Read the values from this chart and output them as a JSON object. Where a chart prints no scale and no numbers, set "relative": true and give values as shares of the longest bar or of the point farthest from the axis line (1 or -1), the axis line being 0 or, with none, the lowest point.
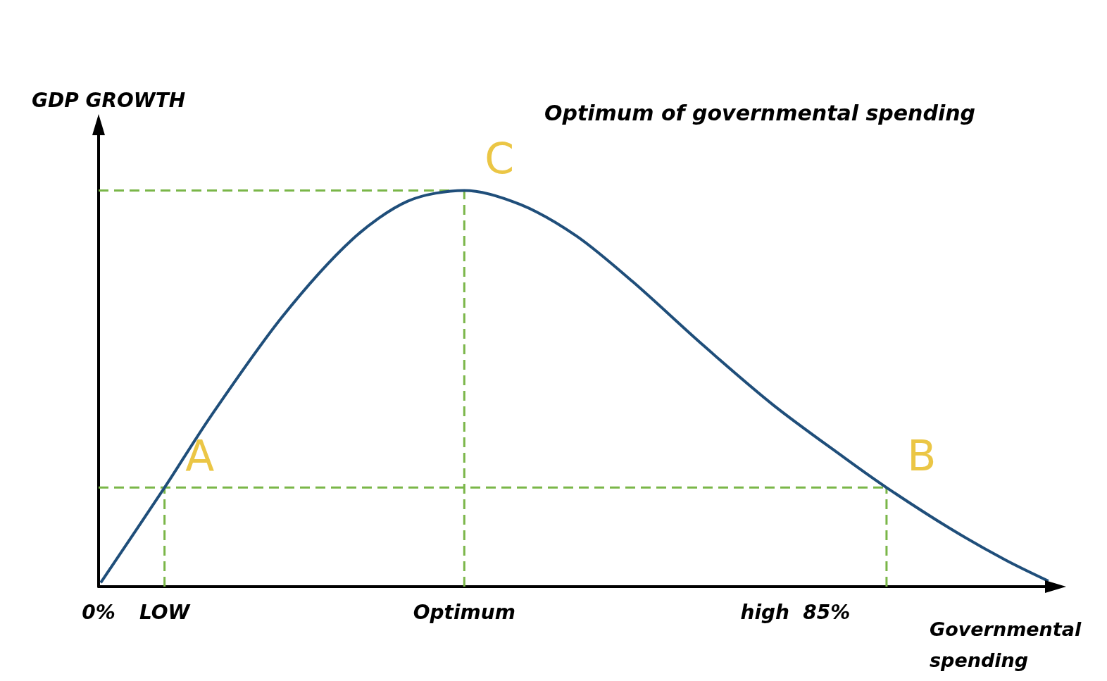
{
  "chart_data": {
    "type": "line",
    "title": "Optimum of governmental spending",
    "xlabel": "Governmental spending",
    "ylabel": "GDP GROWTH",
    "relative": true,
    "x": [
      0.25,
      7.7,
      13.1,
      21.4,
      29.6,
      36.1,
      42.7,
      49.3,
      55.8,
      62.4,
      70.6,
      78.8,
      87.1,
      92,
      99.4,
      105.9,
      110.9
    ],
    "series": [
      {
        "color": "#1f4e7a",
        "values": [
          0.01,
          0.25,
          0.43,
          0.68,
          0.876,
          0.973,
          1,
          0.964,
          0.885,
          0.769,
          0.609,
          0.458,
          0.325,
          0.25,
          0.147,
          0.067,
          0.014
        ]
      },
      {
        "color": "#7ab648",
        "line_style": "dashed",
        "x": [
          7.7,
          7.7
        ],
        "values": [
          0,
          0.25
        ]
      },
      {
        "color": "#7ab648",
        "line_style": "dashed",
        "x": [
          42.7,
          42.7
        ],
        "values": [
          0,
          1
        ]
      },
      {
        "color": "#7ab648",
        "line_style": "dashed",
        "x": [
          92,
          92
        ],
        "values": [
          0,
          0.25
        ]
      },
      {
        "color": "#7ab648",
        "line_style": "dashed",
        "x": [
          0,
          92
        ],
        "values": [
          0.25,
          0.25
        ]
      },
      {
        "color": "#7ab648",
        "line_style": "dashed",
        "x": [
          0,
          42.7
        ],
        "values": [
          1,
          1
        ]
      }
    ],
    "xlim": [
      0,
      111
    ],
    "xticks": [
      {
        "value": 0,
        "label": "0%"
      },
      {
        "value": 7.7,
        "label": "LOW"
      },
      {
        "value": 42.7,
        "label": "Optimum"
      },
      {
        "value": 77.8,
        "label": "high"
      },
      {
        "value": 85,
        "label": "85%"
      }
    ],
    "annotations": [
      {
        "text": "A",
        "x": 7.7,
        "y": 0.25
      },
      {
        "text": "C",
        "x": 42.7,
        "y": 1
      },
      {
        "text": "B",
        "x": 92,
        "y": 0.25
      }
    ],
    "grid": false,
    "marker": "none",
    "line_style": "solid"
  }
}
